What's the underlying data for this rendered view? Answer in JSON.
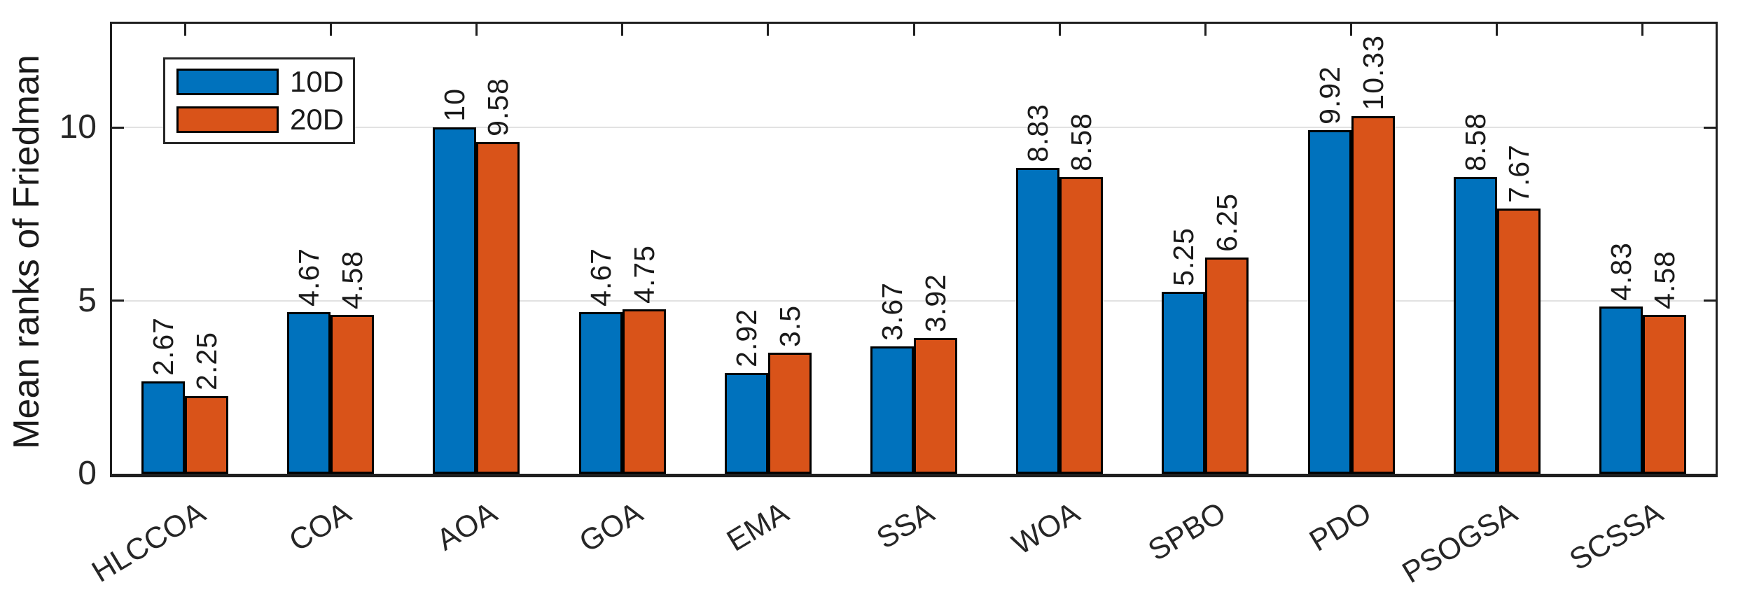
{
  "figure": {
    "background_color": "#FFFFFF",
    "axis_color": "#262626",
    "grid_color": "#E2E2E2",
    "bar_edge_color": "#000000"
  },
  "legend": {
    "position": "top-left",
    "items": [
      {
        "label": "10D",
        "color": "#0072BD"
      },
      {
        "label": "20D",
        "color": "#D95319"
      }
    ]
  },
  "chart_data": {
    "type": "bar",
    "title": "",
    "xlabel": "",
    "ylabel": "Mean ranks of Friedman",
    "categories": [
      "HLCCOA",
      "COA",
      "AOA",
      "GOA",
      "EMA",
      "SSA",
      "WOA",
      "SPBO",
      "PDO",
      "PSOGSA",
      "SCSSA"
    ],
    "series": [
      {
        "name": "10D",
        "color": "#0072BD",
        "values": [
          2.67,
          4.67,
          10,
          4.67,
          2.92,
          3.67,
          8.83,
          5.25,
          9.92,
          8.58,
          4.83
        ]
      },
      {
        "name": "20D",
        "color": "#D95319",
        "values": [
          2.25,
          4.58,
          9.58,
          4.75,
          3.5,
          3.92,
          8.58,
          6.25,
          10.33,
          7.67,
          4.58
        ]
      }
    ],
    "bar_value_labels_shown": true,
    "bar_value_label_rotation_deg": 90,
    "x_tick_label_rotation_deg": 31,
    "ylim": [
      0,
      13
    ],
    "yticks": [
      0,
      5,
      10
    ],
    "grid": "horizontal",
    "legend_position": "top-left"
  }
}
